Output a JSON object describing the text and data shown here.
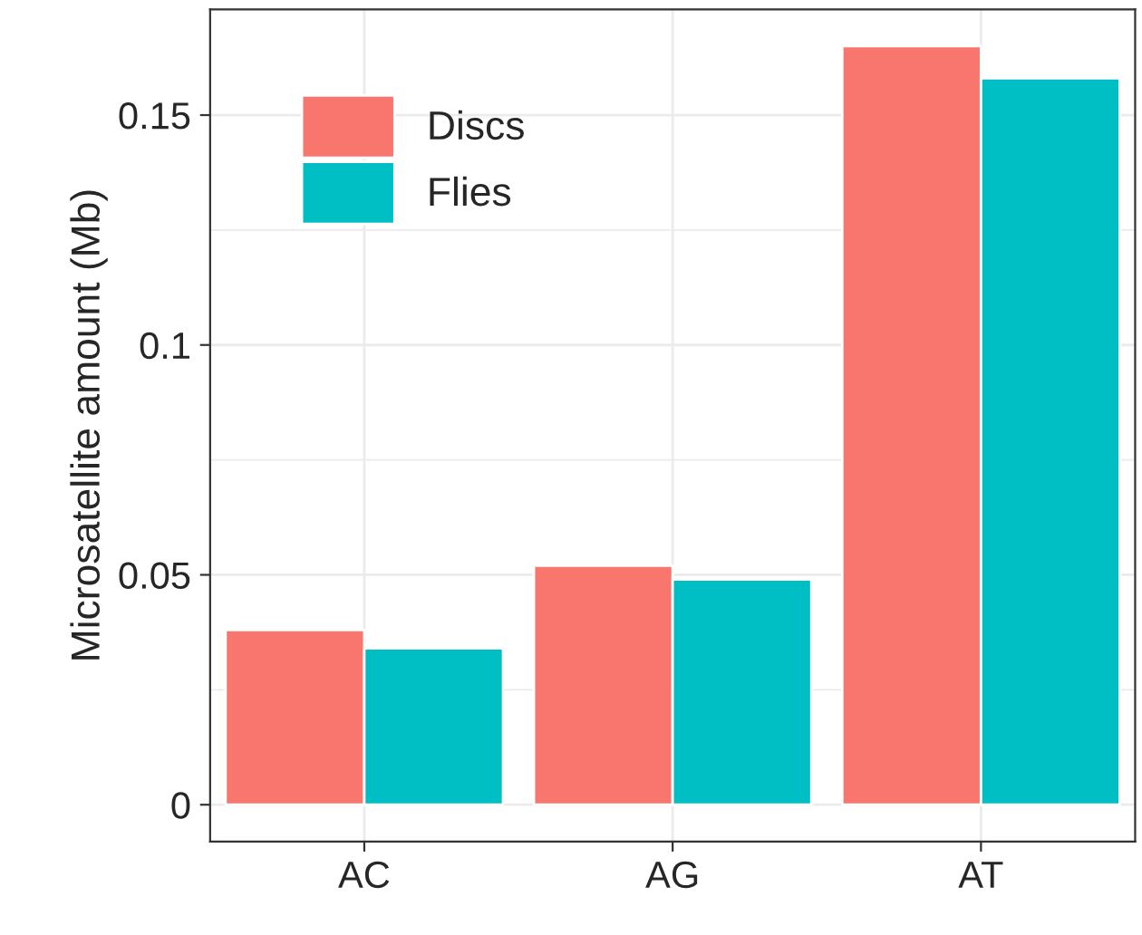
{
  "chart_data": {
    "type": "bar",
    "ylabel": "Microsatellite amount (Mb)",
    "categories": [
      "AC",
      "AG",
      "AT"
    ],
    "series": [
      {
        "name": "Discs",
        "color": "#f8766d",
        "values": [
          0.038,
          0.052,
          0.165
        ]
      },
      {
        "name": "Flies",
        "color": "#00bfc4",
        "values": [
          0.034,
          0.049,
          0.158
        ]
      }
    ],
    "ylim": [
      -0.008,
      0.173
    ],
    "yticks": [
      0,
      0.05,
      {
        "value": 0.1,
        "label": "0.1"
      },
      0.15
    ],
    "grid": true,
    "legend": "top left"
  }
}
